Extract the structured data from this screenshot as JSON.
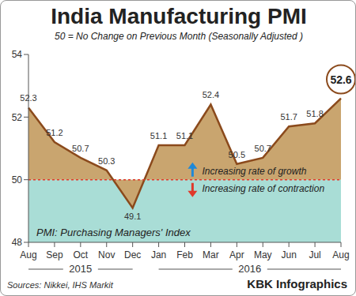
{
  "chart_data": {
    "type": "area",
    "title": "India Manufacturing PMI",
    "subtitle": "50 = No Change on Previous Month (Seasonally Adjusted )",
    "categories": [
      "Aug",
      "Sep",
      "Oct",
      "Nov",
      "Dec",
      "Jan",
      "Feb",
      "Mar",
      "Apr",
      "May",
      "Jun",
      "Jul",
      "Aug"
    ],
    "category_years": [
      "2015",
      "2015",
      "2015",
      "2015",
      "2015",
      "2016",
      "2016",
      "2016",
      "2016",
      "2016",
      "2016",
      "2016",
      "2016"
    ],
    "values": [
      52.3,
      51.2,
      50.7,
      50.3,
      49.1,
      51.1,
      51.1,
      52.4,
      50.5,
      50.7,
      51.7,
      51.8,
      52.6
    ],
    "color": "#8b4a1c",
    "ylim": [
      48,
      54
    ],
    "yticks": [
      48,
      50,
      52,
      54
    ],
    "data_labels": true,
    "reference_value": 50,
    "annotations": [
      "Increasing rate of growth",
      "Increasing rate of contraction",
      "PMI: Purchasing Managers' Index"
    ],
    "source": "Sources: Nikkei, IHS Markit",
    "credit": "KBK Infographics"
  }
}
